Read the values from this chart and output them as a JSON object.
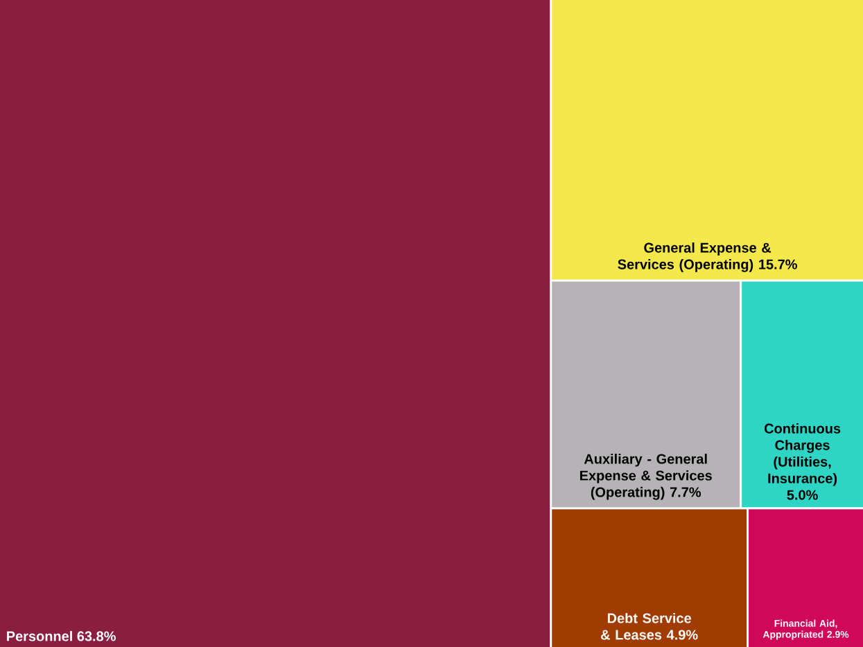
{
  "chart_data": {
    "type": "other",
    "categories": [
      "Personnel",
      "General Expense & Services (Operating)",
      "Auxiliary - General Expense & Services (Operating)",
      "Continuous Charges (Utilities, Insurance)",
      "Debt Service & Leases",
      "Financial Aid, Appropriated"
    ],
    "values": [
      63.8,
      15.7,
      7.7,
      5.0,
      4.9,
      2.9
    ],
    "value_labels": [
      "63.8%",
      "15.7%",
      "7.7%",
      "5.0%",
      "4.9%",
      "2.9%"
    ],
    "colors": [
      "#8a1e41",
      "#f5e84a",
      "#b5b3b5",
      "#2ed5c5",
      "#a03c00",
      "#d0085a"
    ]
  }
}
